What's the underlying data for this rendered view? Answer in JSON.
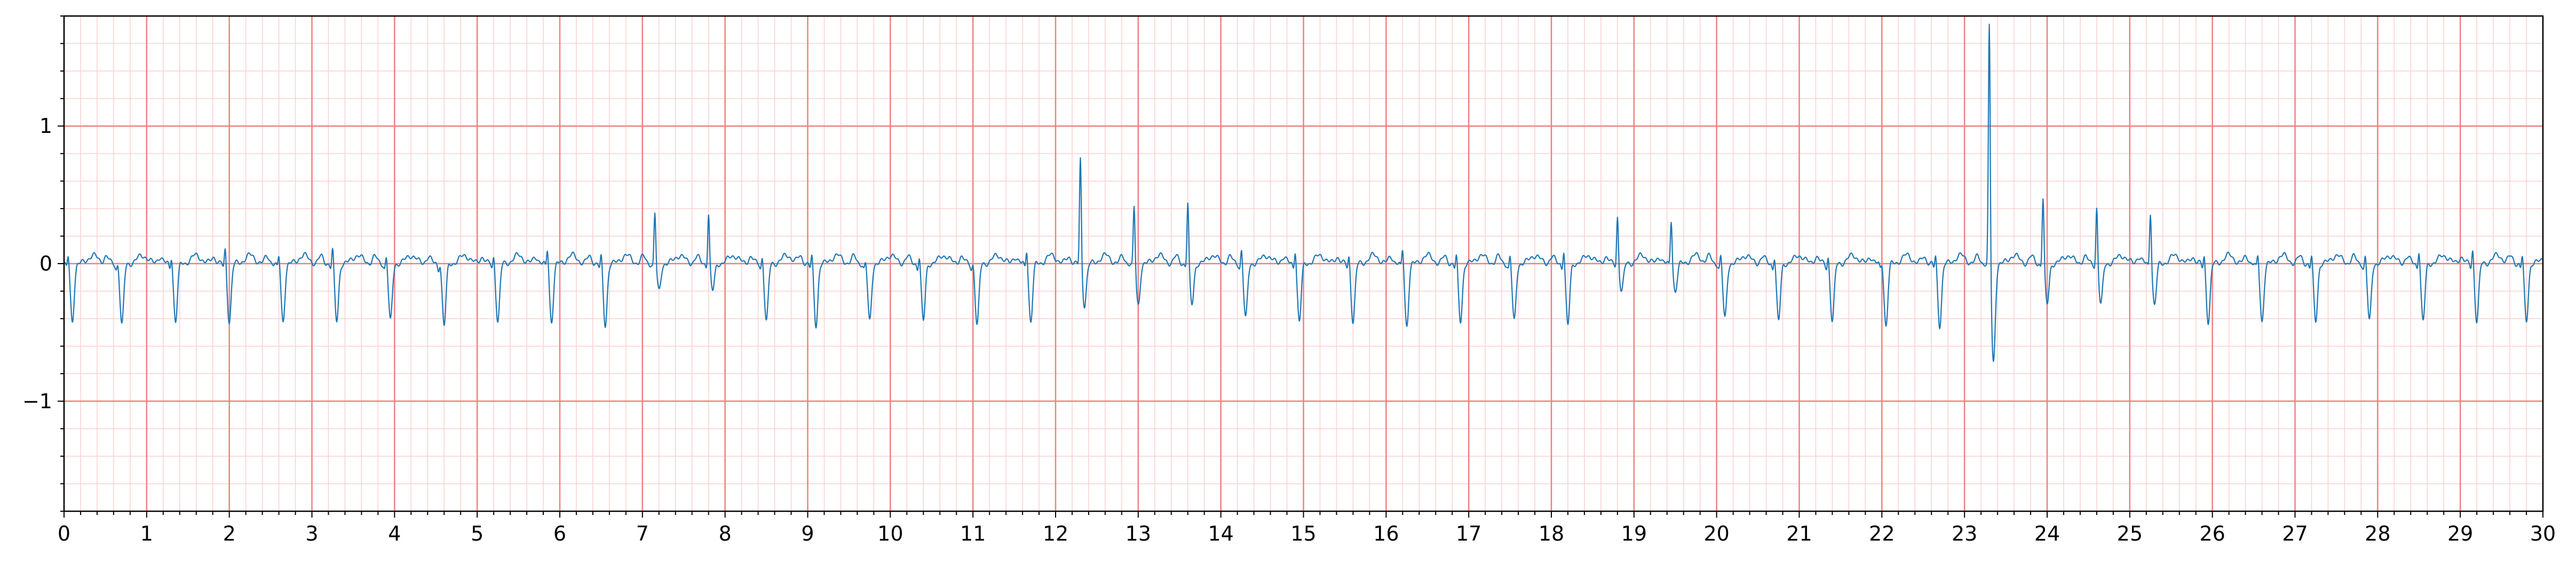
{
  "chart_data": {
    "type": "line",
    "title": "",
    "xlabel": "",
    "ylabel": "",
    "xlim": [
      0,
      30
    ],
    "ylim": [
      -1.8,
      1.8
    ],
    "x_ticks": [
      "0",
      "1",
      "2",
      "3",
      "4",
      "5",
      "6",
      "7",
      "8",
      "9",
      "10",
      "11",
      "12",
      "13",
      "14",
      "15",
      "16",
      "17",
      "18",
      "19",
      "20",
      "21",
      "22",
      "23",
      "24",
      "25",
      "26",
      "27",
      "28",
      "29",
      "30"
    ],
    "y_ticks": [
      {
        "value": 1,
        "label": "1"
      },
      {
        "value": 0,
        "label": "0"
      },
      {
        "value": -1,
        "label": "−1"
      }
    ],
    "grid": {
      "on": true,
      "major_x_step": 1,
      "minor_x_step": 0.2,
      "major_y_step": 1,
      "minor_y_step": 0.2
    },
    "colors": {
      "trace": "#1f77b4",
      "grid_major": "#f08080",
      "grid_minor": "#fbd0d0",
      "axis": "#000000"
    },
    "series": [
      {
        "beat_times": [
          0.05,
          0.65,
          1.3,
          1.95,
          2.6,
          3.25,
          3.9,
          4.55,
          5.2,
          5.85,
          6.5,
          7.15,
          7.8,
          8.45,
          9.05,
          9.7,
          10.35,
          11.0,
          11.65,
          12.3,
          12.95,
          13.6,
          14.25,
          14.9,
          15.55,
          16.2,
          16.85,
          17.5,
          18.15,
          18.8,
          19.45,
          20.05,
          20.7,
          21.35,
          22.0,
          22.65,
          23.3,
          23.95,
          24.6,
          25.25,
          25.9,
          26.55,
          27.2,
          27.85,
          28.5,
          29.15,
          29.75
        ],
        "r_amplitudes": [
          0.1,
          0.05,
          0.1,
          0.15,
          0.1,
          0.15,
          0.1,
          0.05,
          0.1,
          0.15,
          0.1,
          0.4,
          0.4,
          0.1,
          0.1,
          0.05,
          0.1,
          0.05,
          0.15,
          0.8,
          0.45,
          0.48,
          0.15,
          0.15,
          0.1,
          0.15,
          0.1,
          0.1,
          0.15,
          0.38,
          0.35,
          0.1,
          0.1,
          0.1,
          0.05,
          0.1,
          1.8,
          0.52,
          0.45,
          0.42,
          0.1,
          0.1,
          0.1,
          0.1,
          0.15,
          0.15,
          0.1
        ],
        "s_depths": [
          -0.42,
          -0.45,
          -0.42,
          -0.42,
          -0.42,
          -0.42,
          -0.42,
          -0.45,
          -0.42,
          -0.42,
          -0.45,
          -0.2,
          -0.2,
          -0.42,
          -0.45,
          -0.42,
          -0.42,
          -0.45,
          -0.42,
          -0.3,
          -0.3,
          -0.3,
          -0.4,
          -0.42,
          -0.42,
          -0.45,
          -0.42,
          -0.42,
          -0.45,
          -0.2,
          -0.2,
          -0.4,
          -0.42,
          -0.42,
          -0.45,
          -0.45,
          -0.72,
          -0.3,
          -0.3,
          -0.3,
          -0.42,
          -0.42,
          -0.42,
          -0.42,
          -0.42,
          -0.42,
          -0.42
        ]
      }
    ]
  }
}
